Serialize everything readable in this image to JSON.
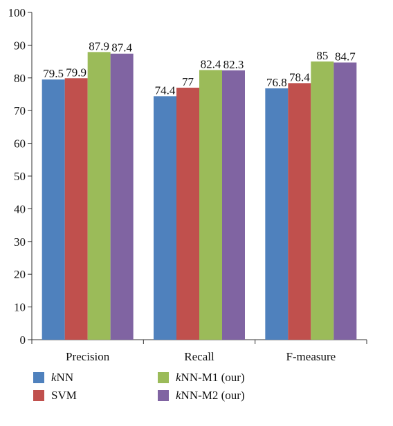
{
  "chart_data": {
    "type": "bar",
    "categories": [
      "Precision",
      "Recall",
      "F-measure"
    ],
    "series": [
      {
        "name": "kNN",
        "color": "#4F81BD",
        "values": [
          79.5,
          74.4,
          76.8
        ]
      },
      {
        "name": "SVM",
        "color": "#C0504D",
        "values": [
          79.9,
          77,
          78.4
        ]
      },
      {
        "name": "kNN-M1 (our)",
        "color": "#9BBB59",
        "values": [
          87.9,
          82.4,
          85
        ]
      },
      {
        "name": "kNN-M2 (our)",
        "color": "#8064A2",
        "values": [
          87.4,
          82.3,
          84.7
        ]
      }
    ],
    "data_labels": [
      [
        "79.5",
        "74.4",
        "76.8"
      ],
      [
        "79.9",
        "77",
        "78.4"
      ],
      [
        "87.9",
        "82.4",
        "85"
      ],
      [
        "87.4",
        "82.3",
        "84.7"
      ]
    ],
    "ylim": [
      0,
      100
    ],
    "yticks": [
      0,
      10,
      20,
      30,
      40,
      50,
      60,
      70,
      80,
      90,
      100
    ],
    "title": "",
    "xlabel": "",
    "ylabel": "",
    "grid": false,
    "legend_position": "bottom"
  },
  "legend": {
    "items": [
      {
        "prefix": "k",
        "label": "NN"
      },
      {
        "prefix": "",
        "label": "SVM"
      },
      {
        "prefix": "k",
        "label": "NN-M1 (our)"
      },
      {
        "prefix": "k",
        "label": "NN-M2 (our)"
      }
    ]
  }
}
